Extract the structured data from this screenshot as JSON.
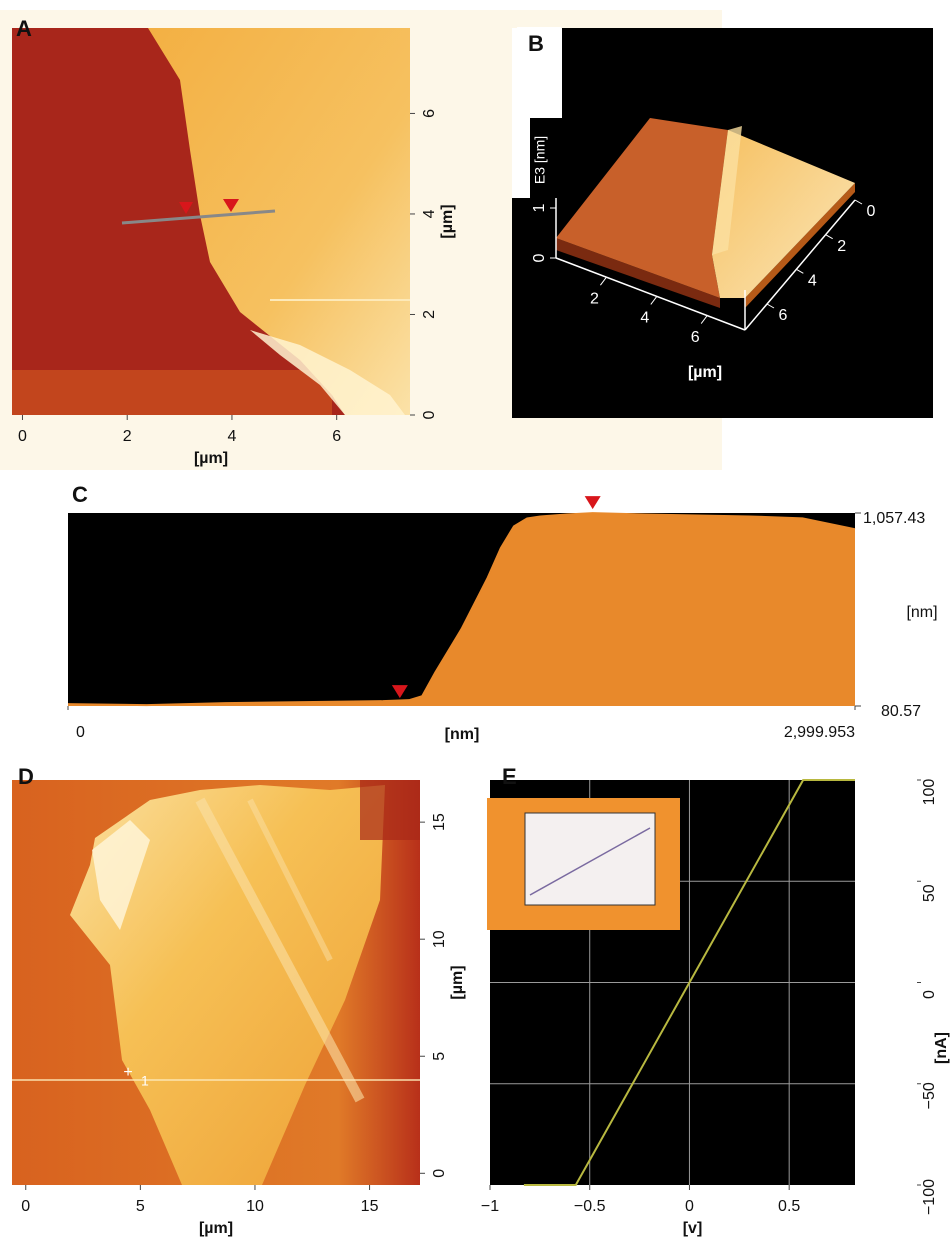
{
  "chart_data": [
    {
      "panel": "A",
      "type": "heatmap",
      "xlabel": "[µm]",
      "ylabel": "[µm]",
      "xlim": [
        -0.2,
        7.4
      ],
      "ylim": [
        0,
        7.7
      ],
      "xticks": [
        0,
        2,
        4,
        6
      ],
      "yticks": [
        0,
        2,
        4,
        6
      ]
    },
    {
      "panel": "B",
      "type": "surface",
      "zlabel": "E3 [nm]",
      "xlabel": "[µm]",
      "xlim": [
        0,
        7.5
      ],
      "ylim": [
        0,
        7.5
      ],
      "zlim": [
        0,
        1.2
      ],
      "xticks": [
        2,
        4,
        6
      ],
      "yticks": [
        0,
        2,
        4,
        6
      ],
      "zticks": [
        0,
        1
      ]
    },
    {
      "panel": "C",
      "type": "area",
      "xlabel": "[nm]",
      "ylabel": "[nm]",
      "xlim": [
        0,
        2999.953
      ],
      "ylim": [
        80.57,
        1057.43
      ],
      "xticks": [
        0,
        {
          "value": 2999.953,
          "label": "2,999.953"
        }
      ],
      "yticks": [
        {
          "value": 1057.43,
          "label": "1,057.43"
        },
        80.57
      ],
      "x": [
        0,
        300,
        600,
        900,
        1200,
        1300,
        1350,
        1400,
        1500,
        1600,
        1650,
        1700,
        1750,
        1800,
        1900,
        2000,
        2200,
        2400,
        2600,
        2800,
        2999.953
      ],
      "values": [
        90,
        85,
        95,
        100,
        105,
        110,
        130,
        250,
        470,
        730,
        880,
        990,
        1030,
        1040,
        1050,
        1057,
        1050,
        1045,
        1040,
        1030,
        975
      ],
      "color": "#e8892b",
      "cursors": [
        {
          "x": 1265,
          "y": 100
        },
        {
          "x": 2000,
          "y": 1057
        }
      ]
    },
    {
      "panel": "D",
      "type": "heatmap",
      "xlabel": "[µm]",
      "ylabel": "[µm]",
      "annotation": "1",
      "xlim": [
        -0.6,
        17.2
      ],
      "ylim": [
        -0.5,
        16.8
      ],
      "xticks": [
        0,
        5,
        10,
        15
      ],
      "yticks": [
        0,
        5,
        10,
        15
      ]
    },
    {
      "panel": "E",
      "type": "line",
      "xlabel": "[v]",
      "ylabel": "[nA]",
      "xlim": [
        -1,
        0.83
      ],
      "ylim": [
        -100,
        100
      ],
      "xticks": [
        {
          "value": -1,
          "label": "−1"
        },
        {
          "value": -0.5,
          "label": "−0.5"
        },
        0,
        0.5
      ],
      "yticks": [
        100,
        50,
        0,
        {
          "value": -50,
          "label": "−50"
        },
        {
          "value": -100,
          "label": "−100"
        }
      ],
      "x": [
        -0.83,
        -0.57,
        0,
        0.57,
        0.83
      ],
      "values": [
        -100,
        -100,
        0,
        100,
        100
      ],
      "color": "#b8b840",
      "grid": true
    }
  ]
}
